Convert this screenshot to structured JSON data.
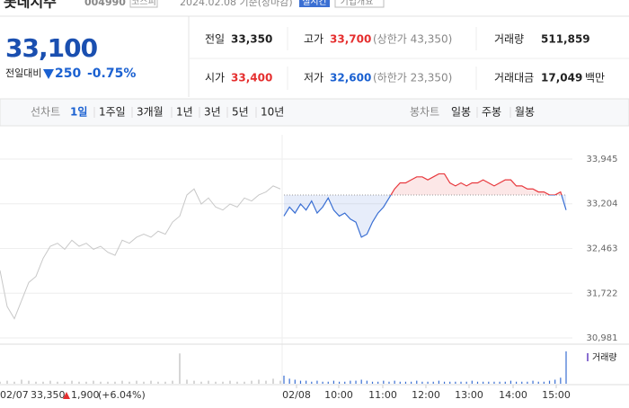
{
  "header": {
    "name": "롯데지주",
    "code": "004990",
    "market": "코스피",
    "date": "2024.02.08 기준(장마감)",
    "realtime": "실시간",
    "company": "기업개요"
  },
  "price": {
    "current": "33,100",
    "change_label": "전일대비",
    "change": "250",
    "rate": "-0.75%"
  },
  "summary": {
    "rows": [
      [
        {
          "label": "전일",
          "value": "33,350"
        },
        {
          "label": "고가",
          "value": "33,700",
          "note": "(상한가 43,350)"
        },
        {
          "label": "거래량",
          "value": "511,859"
        }
      ],
      [
        {
          "label": "시가",
          "value": "33,400"
        },
        {
          "label": "저가",
          "value": "32,600",
          "note": "(하한가 23,350)"
        },
        {
          "label": "거래대금",
          "value": "17,049",
          "unit": "백만"
        }
      ]
    ]
  },
  "tabs": {
    "line_chart": "선차트",
    "periods": [
      "1일",
      "1주일",
      "3개월",
      "1년",
      "3년",
      "5년",
      "10년"
    ],
    "candle_chart": "봉차트",
    "candles": [
      "일봉",
      "주봉",
      "월봉"
    ]
  },
  "chart_data": {
    "type": "line",
    "ylim": [
      30877,
      34347
    ],
    "yticks": [
      {
        "value": 33945,
        "label": "33,945"
      },
      {
        "value": 33204,
        "label": "33,204"
      },
      {
        "value": 32463,
        "label": "32,463"
      },
      {
        "value": 31722,
        "label": "31,722"
      },
      {
        "value": 30981,
        "label": "30,981"
      }
    ],
    "grid": true,
    "baseline": 33350,
    "series": [
      {
        "color": "#c8c8c8",
        "values": [
          32100,
          31500,
          31300,
          31600,
          31900,
          32000,
          32300,
          32500,
          32550,
          32450,
          32600,
          32500,
          32550,
          32450,
          32500,
          32400,
          32350,
          32600,
          32550,
          32650,
          32700,
          32650,
          32750,
          32700,
          32900,
          33000,
          33350,
          33450,
          33200,
          33300,
          33150,
          33100,
          33200,
          33150,
          33300,
          33250,
          33350,
          33400,
          33500,
          33450
        ]
      },
      {
        "color_up": "#e8383d",
        "color_down": "#3a6fd3",
        "values": [
          33000,
          33150,
          33050,
          33200,
          33100,
          33250,
          33050,
          33150,
          33300,
          33100,
          33000,
          33050,
          32950,
          32900,
          32650,
          32700,
          32900,
          33050,
          33150,
          33300,
          33450,
          33550,
          33550,
          33600,
          33650,
          33650,
          33600,
          33650,
          33700,
          33700,
          33550,
          33500,
          33550,
          33500,
          33550,
          33550,
          33600,
          33550,
          33500,
          33550,
          33600,
          33600,
          33500,
          33500,
          33450,
          33450,
          33400,
          33400,
          33350,
          33350,
          33400,
          33100
        ]
      }
    ],
    "x_labels": [
      "02/08",
      "10:00",
      "11:00",
      "12:00",
      "13:00",
      "14:00",
      "15:00"
    ],
    "volume": {
      "label": "거래량",
      "prev": [
        2,
        3,
        2,
        4,
        3,
        2,
        2,
        3,
        2,
        2,
        3,
        2,
        2,
        3,
        2,
        2,
        2,
        3,
        2,
        3,
        2,
        3,
        2,
        2,
        3,
        30,
        4,
        3,
        2,
        3,
        2,
        2,
        3,
        2,
        2,
        3,
        4,
        3,
        5,
        3
      ],
      "today": [
        8,
        5,
        4,
        3,
        3,
        2,
        3,
        2,
        2,
        3,
        2,
        2,
        3,
        3,
        4,
        3,
        2,
        2,
        3,
        2,
        3,
        2,
        2,
        2,
        3,
        2,
        2,
        2,
        3,
        2,
        2,
        2,
        2,
        2,
        3,
        2,
        2,
        2,
        2,
        2,
        2,
        3,
        2,
        2,
        2,
        3,
        2,
        2,
        3,
        4,
        6,
        32
      ]
    },
    "footer": {
      "date": "02/07",
      "close": "33,350",
      "change": "1,900",
      "rate": "(+6.04%)"
    }
  }
}
